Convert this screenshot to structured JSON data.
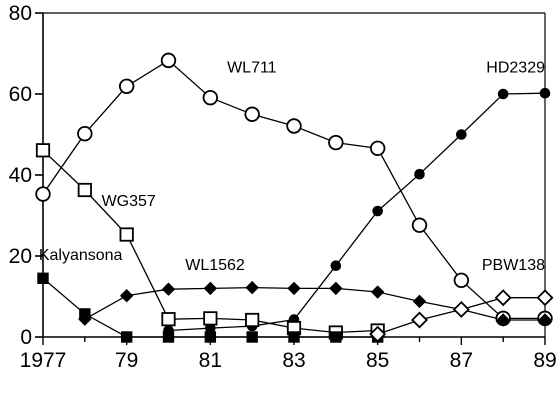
{
  "chart_data": {
    "type": "line",
    "title": "",
    "xlabel": "",
    "ylabel": "",
    "xlim": [
      1977,
      1989
    ],
    "ylim": [
      0,
      80
    ],
    "x_ticks": [
      1977,
      1979,
      1981,
      1983,
      1985,
      1987,
      1989
    ],
    "x_tick_labels": [
      "1977",
      "79",
      "81",
      "83",
      "85",
      "87",
      "89"
    ],
    "y_ticks": [
      0,
      20,
      40,
      60,
      80
    ],
    "y_tick_labels": [
      "0",
      "20",
      "40",
      "60",
      "80"
    ],
    "grid": false,
    "legend": "none",
    "series": [
      {
        "name": "WL711",
        "marker": "open-circle",
        "points": [
          [
            1977,
            35.3
          ],
          [
            1978,
            50.2
          ],
          [
            1979,
            61.9
          ],
          [
            1980,
            68.3
          ],
          [
            1981,
            59.1
          ],
          [
            1982,
            55.0
          ],
          [
            1983,
            52.1
          ],
          [
            1984,
            48.0
          ],
          [
            1985,
            46.6
          ],
          [
            1986,
            27.6
          ],
          [
            1987,
            14.0
          ],
          [
            1988,
            4.6
          ],
          [
            1989,
            4.6
          ]
        ]
      },
      {
        "name": "HD2329",
        "marker": "filled-circle",
        "points": [
          [
            1980,
            1.6
          ],
          [
            1981,
            2.2
          ],
          [
            1982,
            2.7
          ],
          [
            1983,
            4.3
          ],
          [
            1984,
            17.6
          ],
          [
            1985,
            31.1
          ],
          [
            1986,
            40.2
          ],
          [
            1987,
            50.0
          ],
          [
            1988,
            60.0
          ],
          [
            1989,
            60.2
          ]
        ]
      },
      {
        "name": "WG357",
        "marker": "open-square",
        "points": [
          [
            1977,
            46.1
          ],
          [
            1978,
            36.3
          ],
          [
            1979,
            25.3
          ],
          [
            1980,
            4.4
          ],
          [
            1981,
            4.6
          ],
          [
            1982,
            4.2
          ],
          [
            1983,
            2.2
          ],
          [
            1984,
            1.1
          ],
          [
            1985,
            1.6
          ]
        ]
      },
      {
        "name": "WL1562",
        "marker": "filled-diamond",
        "points": [
          [
            1978,
            4.4
          ],
          [
            1979,
            10.2
          ],
          [
            1980,
            11.8
          ],
          [
            1981,
            12.0
          ],
          [
            1982,
            12.2
          ],
          [
            1983,
            12.0
          ],
          [
            1984,
            12.0
          ],
          [
            1985,
            11.1
          ],
          [
            1986,
            8.8
          ],
          [
            1987,
            6.8
          ],
          [
            1988,
            4.2
          ],
          [
            1989,
            4.2
          ]
        ]
      },
      {
        "name": "Kalyansona",
        "marker": "filled-square",
        "points": [
          [
            1977,
            14.5
          ],
          [
            1978,
            5.7
          ],
          [
            1979,
            0.0
          ],
          [
            1980,
            0.0
          ],
          [
            1981,
            0.0
          ],
          [
            1982,
            0.0
          ],
          [
            1983,
            0.0
          ],
          [
            1984,
            0.0
          ],
          [
            1985,
            0.0
          ]
        ]
      },
      {
        "name": "PBW138",
        "marker": "open-diamond",
        "points": [
          [
            1985,
            0.7
          ],
          [
            1986,
            4.2
          ],
          [
            1987,
            6.8
          ],
          [
            1988,
            9.7
          ],
          [
            1989,
            9.7
          ]
        ]
      }
    ],
    "annotations": [
      {
        "text": "WL711",
        "x": 1981.4,
        "y": 65.3,
        "anchor": "start"
      },
      {
        "text": "HD2329",
        "x": 1989.0,
        "y": 65.3,
        "anchor": "end"
      },
      {
        "text": "WG357",
        "x": 1978.4,
        "y": 32.4,
        "anchor": "start"
      },
      {
        "text": "Kalyansona",
        "x": 1976.9,
        "y": 19.0,
        "anchor": "start"
      },
      {
        "text": "WL1562",
        "x": 1980.4,
        "y": 16.5,
        "anchor": "start"
      },
      {
        "text": "PBW138",
        "x": 1989.0,
        "y": 16.5,
        "anchor": "end"
      }
    ]
  }
}
